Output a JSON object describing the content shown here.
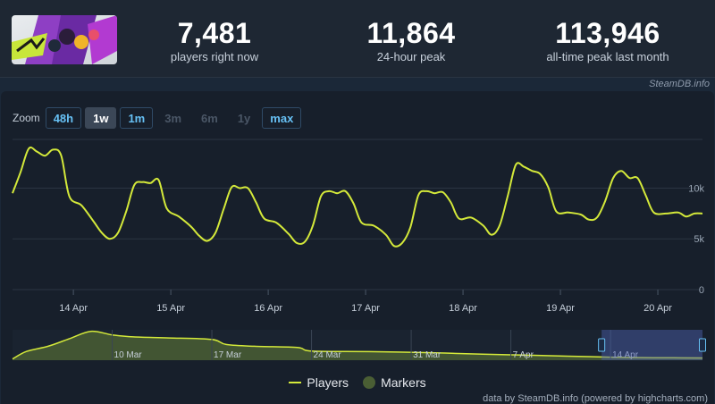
{
  "stats": [
    {
      "value": "7,481",
      "label": "players right now"
    },
    {
      "value": "11,864",
      "label": "24-hour peak"
    },
    {
      "value": "113,946",
      "label": "all-time peak last month"
    }
  ],
  "credit_top": "SteamDB.info",
  "zoom": {
    "label": "Zoom",
    "buttons": [
      {
        "label": "48h",
        "state": "bordered"
      },
      {
        "label": "1w",
        "state": "active"
      },
      {
        "label": "1m",
        "state": "bordered"
      },
      {
        "label": "3m",
        "state": "disabled"
      },
      {
        "label": "6m",
        "state": "disabled"
      },
      {
        "label": "1y",
        "state": "disabled"
      },
      {
        "label": "max",
        "state": "bordered"
      }
    ]
  },
  "legend": {
    "players": "Players",
    "markers": "Markers"
  },
  "credit_bottom": "data by SteamDB.info (powered by highcharts.com)",
  "colors": {
    "line": "#d4e93a",
    "navigator_fill": "#4a5e34",
    "grid": "#2b3543"
  },
  "chart_data": {
    "type": "line",
    "series": [
      {
        "name": "Players",
        "points": [
          [
            "Apr 13 09:00",
            9500
          ],
          [
            "Apr 13 11:00",
            11600
          ],
          [
            "Apr 13 13:00",
            13900
          ],
          [
            "Apr 13 15:00",
            13600
          ],
          [
            "Apr 13 17:00",
            13200
          ],
          [
            "Apr 13 19:00",
            13800
          ],
          [
            "Apr 13 21:00",
            13200
          ],
          [
            "Apr 13 23:00",
            9200
          ],
          [
            "Apr 14 02:00",
            8300
          ],
          [
            "Apr 14 05:00",
            6700
          ],
          [
            "Apr 14 07:00",
            5600
          ],
          [
            "Apr 14 09:00",
            5000
          ],
          [
            "Apr 14 11:00",
            5600
          ],
          [
            "Apr 14 13:00",
            7700
          ],
          [
            "Apr 14 15:00",
            10300
          ],
          [
            "Apr 14 17:00",
            10600
          ],
          [
            "Apr 14 19:00",
            10500
          ],
          [
            "Apr 14 21:00",
            10800
          ],
          [
            "Apr 14 23:00",
            8000
          ],
          [
            "Apr 15 02:00",
            7200
          ],
          [
            "Apr 15 05:00",
            6200
          ],
          [
            "Apr 15 07:00",
            5300
          ],
          [
            "Apr 15 09:00",
            4800
          ],
          [
            "Apr 15 11:00",
            5600
          ],
          [
            "Apr 15 13:00",
            7900
          ],
          [
            "Apr 15 15:00",
            10100
          ],
          [
            "Apr 15 17:00",
            10000
          ],
          [
            "Apr 15 19:00",
            10000
          ],
          [
            "Apr 15 21:00",
            8600
          ],
          [
            "Apr 15 23:00",
            7000
          ],
          [
            "Apr 16 02:00",
            6600
          ],
          [
            "Apr 16 05:00",
            5500
          ],
          [
            "Apr 16 07:00",
            4600
          ],
          [
            "Apr 16 09:00",
            4700
          ],
          [
            "Apr 16 11:00",
            6300
          ],
          [
            "Apr 16 13:00",
            9200
          ],
          [
            "Apr 16 15:00",
            9700
          ],
          [
            "Apr 16 17:00",
            9500
          ],
          [
            "Apr 16 19:00",
            9700
          ],
          [
            "Apr 16 21:00",
            8500
          ],
          [
            "Apr 16 23:00",
            6600
          ],
          [
            "Apr 17 02:00",
            6300
          ],
          [
            "Apr 17 05:00",
            5400
          ],
          [
            "Apr 17 07:00",
            4300
          ],
          [
            "Apr 17 09:00",
            4600
          ],
          [
            "Apr 17 11:00",
            6100
          ],
          [
            "Apr 17 13:00",
            9300
          ],
          [
            "Apr 17 15:00",
            9700
          ],
          [
            "Apr 17 17:00",
            9500
          ],
          [
            "Apr 17 19:00",
            9600
          ],
          [
            "Apr 17 21:00",
            8600
          ],
          [
            "Apr 17 23:00",
            7000
          ],
          [
            "Apr 18 02:00",
            7100
          ],
          [
            "Apr 18 05:00",
            6300
          ],
          [
            "Apr 18 07:00",
            5400
          ],
          [
            "Apr 18 09:00",
            6300
          ],
          [
            "Apr 18 11:00",
            9200
          ],
          [
            "Apr 18 13:00",
            12300
          ],
          [
            "Apr 18 15:00",
            12100
          ],
          [
            "Apr 18 17:00",
            11700
          ],
          [
            "Apr 18 19:00",
            11400
          ],
          [
            "Apr 18 21:00",
            10100
          ],
          [
            "Apr 18 23:00",
            7700
          ],
          [
            "Apr 19 02:00",
            7600
          ],
          [
            "Apr 19 05:00",
            7400
          ],
          [
            "Apr 19 07:00",
            6900
          ],
          [
            "Apr 19 09:00",
            7100
          ],
          [
            "Apr 19 11:00",
            8700
          ],
          [
            "Apr 19 13:00",
            11000
          ],
          [
            "Apr 19 15:00",
            11700
          ],
          [
            "Apr 19 17:00",
            11000
          ],
          [
            "Apr 19 19:00",
            11000
          ],
          [
            "Apr 19 21:00",
            9300
          ],
          [
            "Apr 19 23:00",
            7600
          ],
          [
            "Apr 20 02:00",
            7500
          ],
          [
            "Apr 20 05:00",
            7600
          ],
          [
            "Apr 20 07:00",
            7200
          ],
          [
            "Apr 20 09:00",
            7500
          ],
          [
            "Apr 20 11:00",
            7500
          ]
        ]
      }
    ],
    "x_ticks": [
      "14 Apr",
      "15 Apr",
      "16 Apr",
      "17 Apr",
      "18 Apr",
      "19 Apr",
      "20 Apr"
    ],
    "y_ticks": [
      "0",
      "5k",
      "10k"
    ],
    "ylim": [
      0,
      14800
    ],
    "grid": true,
    "navigator": {
      "x_ticks": [
        "10 Mar",
        "17 Mar",
        "24 Mar",
        "31 Mar",
        "7 Apr",
        "14 Apr"
      ],
      "selected_range": [
        "Apr 13 09:00",
        "Apr 20 11:00"
      ],
      "points": [
        [
          "Mar 3 00:00",
          5000
        ],
        [
          "Mar 4 00:00",
          35000
        ],
        [
          "Mar 5 12:00",
          55000
        ],
        [
          "Mar 7 00:00",
          85000
        ],
        [
          "Mar 8 12:00",
          113946
        ],
        [
          "Mar 10 00:00",
          100000
        ],
        [
          "Mar 11 12:00",
          92000
        ],
        [
          "Mar 14 00:00",
          88000
        ],
        [
          "Mar 17 00:00",
          82000
        ],
        [
          "Mar 18 00:00",
          62000
        ],
        [
          "Mar 20 00:00",
          55000
        ],
        [
          "Mar 23 00:00",
          50000
        ],
        [
          "Mar 24 00:00",
          36000
        ],
        [
          "Mar 28 00:00",
          34000
        ],
        [
          "Apr 1 00:00",
          30000
        ],
        [
          "Apr 5 00:00",
          24000
        ],
        [
          "Apr 8 00:00",
          20000
        ],
        [
          "Apr 11 00:00",
          16000
        ],
        [
          "Apr 14 00:00",
          12000
        ],
        [
          "Apr 17 00:00",
          10000
        ],
        [
          "Apr 20 11:00",
          9000
        ]
      ]
    }
  }
}
